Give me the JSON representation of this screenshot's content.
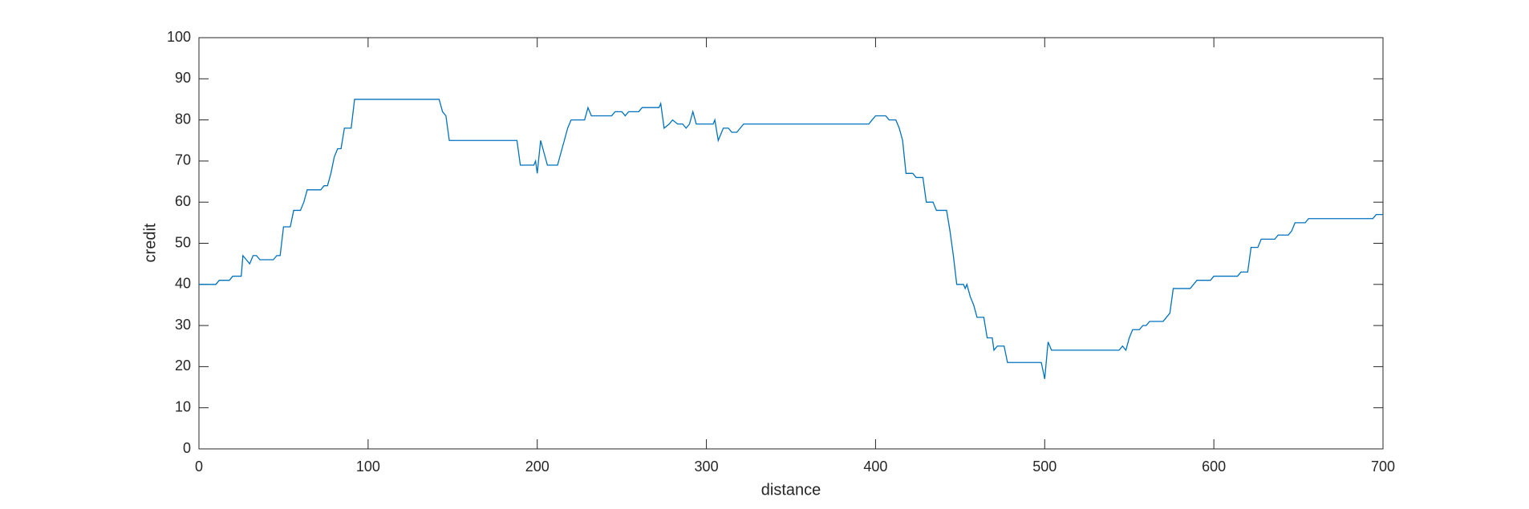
{
  "chart_data": {
    "type": "line",
    "xlabel": "distance",
    "ylabel": "credit",
    "color": "#0072bd",
    "x": [
      0,
      10,
      12,
      18,
      20,
      25,
      26,
      28,
      30,
      32,
      34,
      36,
      44,
      46,
      48,
      50,
      54,
      56,
      60,
      62,
      64,
      72,
      74,
      76,
      78,
      80,
      82,
      84,
      86,
      90,
      92,
      142,
      144,
      146,
      148,
      188,
      190,
      198,
      199,
      200,
      202,
      204,
      206,
      212,
      214,
      216,
      218,
      220,
      228,
      230,
      232,
      244,
      246,
      250,
      252,
      254,
      260,
      262,
      272,
      273,
      275,
      278,
      280,
      283,
      286,
      288,
      290,
      292,
      294,
      304,
      305,
      307,
      310,
      313,
      315,
      318,
      320,
      322,
      396,
      398,
      400,
      406,
      408,
      412,
      414,
      416,
      418,
      422,
      424,
      428,
      430,
      434,
      436,
      442,
      444,
      446,
      448,
      452,
      453,
      454,
      456,
      458,
      460,
      464,
      466,
      469,
      470,
      472,
      476,
      478,
      498,
      500,
      502,
      504,
      544,
      546,
      548,
      550,
      552,
      556,
      558,
      560,
      562,
      570,
      572,
      574,
      576,
      586,
      588,
      590,
      598,
      600,
      614,
      616,
      620,
      622,
      626,
      628,
      636,
      638,
      644,
      646,
      648,
      654,
      656,
      694,
      696,
      700
    ],
    "values": [
      40,
      40,
      41,
      41,
      42,
      42,
      47,
      46,
      45,
      47,
      47,
      46,
      46,
      47,
      47,
      54,
      54,
      58,
      58,
      60,
      63,
      63,
      64,
      64,
      67,
      71,
      73,
      73,
      78,
      78,
      85,
      85,
      82,
      81,
      75,
      75,
      69,
      69,
      70,
      67,
      75,
      72,
      69,
      69,
      72,
      75,
      78,
      80,
      80,
      83,
      81,
      81,
      82,
      82,
      81,
      82,
      82,
      83,
      83,
      84,
      78,
      79,
      80,
      79,
      79,
      78,
      79,
      82,
      79,
      79,
      80,
      75,
      78,
      78,
      77,
      77,
      78,
      79,
      79,
      80,
      81,
      81,
      80,
      80,
      78,
      75,
      67,
      67,
      66,
      66,
      60,
      60,
      58,
      58,
      53,
      47,
      40,
      40,
      39,
      40,
      37,
      35,
      32,
      32,
      27,
      27,
      24,
      25,
      25,
      21,
      21,
      17,
      26,
      24,
      24,
      25,
      24,
      27,
      29,
      29,
      30,
      30,
      31,
      31,
      32,
      33,
      39,
      39,
      40,
      41,
      41,
      42,
      42,
      43,
      43,
      49,
      49,
      51,
      51,
      52,
      52,
      53,
      55,
      55,
      56,
      56,
      57,
      57
    ],
    "xlim": [
      0,
      700
    ],
    "xticks": [
      0,
      100,
      200,
      300,
      400,
      500,
      600,
      700
    ],
    "ylim": [
      0,
      100
    ],
    "yticks": [
      0,
      10,
      20,
      30,
      40,
      50,
      60,
      70,
      80,
      90,
      100
    ]
  }
}
